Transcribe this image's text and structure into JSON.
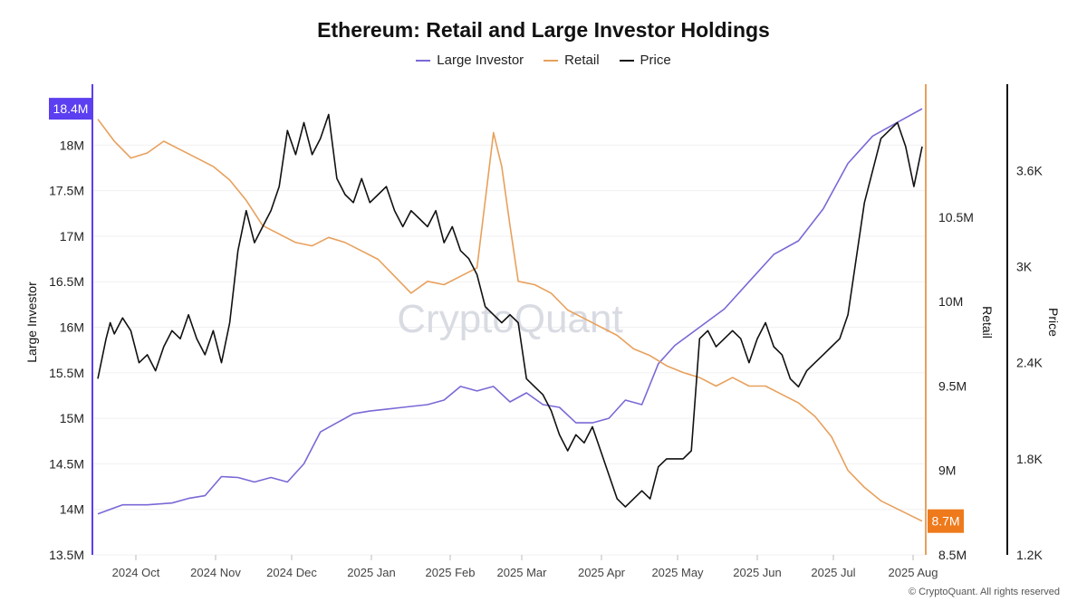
{
  "chart_data": {
    "type": "line",
    "title": "Ethereum: Retail and Large Investor Holdings",
    "legend": [
      {
        "name": "Large Investor",
        "color": "#7b68d6"
      },
      {
        "name": "Retail",
        "color": "#e8a05c"
      },
      {
        "name": "Price",
        "color": "#111111"
      }
    ],
    "x_ticks": [
      "2024 Oct",
      "2024 Nov",
      "2024 Dec",
      "2025 Jan",
      "2025 Feb",
      "2025 Mar",
      "2025 Apr",
      "2025 May",
      "2025 Jun",
      "2025 Jul",
      "2025 Aug"
    ],
    "axes": {
      "left": {
        "label": "Large Investor",
        "ticks": [
          "13.5M",
          "14M",
          "14.5M",
          "15M",
          "15.5M",
          "16M",
          "16.5M",
          "17M",
          "17.5M",
          "18M"
        ],
        "range": [
          13.5,
          18.6
        ],
        "unit": "M",
        "color": "#5b3ff0"
      },
      "right1": {
        "label": "Retail",
        "ticks": [
          "8.5M",
          "9M",
          "9.5M",
          "10M",
          "10.5M"
        ],
        "range": [
          8.5,
          11.25
        ],
        "unit": "M",
        "color": "#e8a05c"
      },
      "right2": {
        "label": "Price",
        "ticks": [
          "1.2K",
          "1.8K",
          "2.4K",
          "3K",
          "3.6K"
        ],
        "range": [
          1200,
          4100
        ],
        "unit": "USD"
      }
    },
    "badges": {
      "large_investor_last": "18.4M",
      "retail_last": "8.7M"
    },
    "watermark": "CryptoQuant",
    "footer": "© CryptoQuant. All rights reserved",
    "series": [
      {
        "name": "Large Investor",
        "axis": "left",
        "points": [
          [
            0.0,
            13.95
          ],
          [
            0.03,
            14.05
          ],
          [
            0.06,
            14.05
          ],
          [
            0.09,
            14.07
          ],
          [
            0.11,
            14.12
          ],
          [
            0.13,
            14.15
          ],
          [
            0.15,
            14.36
          ],
          [
            0.17,
            14.35
          ],
          [
            0.19,
            14.3
          ],
          [
            0.21,
            14.35
          ],
          [
            0.23,
            14.3
          ],
          [
            0.25,
            14.5
          ],
          [
            0.27,
            14.85
          ],
          [
            0.29,
            14.95
          ],
          [
            0.31,
            15.05
          ],
          [
            0.33,
            15.08
          ],
          [
            0.35,
            15.1
          ],
          [
            0.37,
            15.12
          ],
          [
            0.4,
            15.15
          ],
          [
            0.42,
            15.2
          ],
          [
            0.44,
            15.35
          ],
          [
            0.46,
            15.3
          ],
          [
            0.48,
            15.35
          ],
          [
            0.5,
            15.18
          ],
          [
            0.52,
            15.28
          ],
          [
            0.54,
            15.15
          ],
          [
            0.56,
            15.12
          ],
          [
            0.58,
            14.95
          ],
          [
            0.6,
            14.95
          ],
          [
            0.62,
            15.0
          ],
          [
            0.64,
            15.2
          ],
          [
            0.66,
            15.15
          ],
          [
            0.68,
            15.6
          ],
          [
            0.7,
            15.8
          ],
          [
            0.73,
            16.0
          ],
          [
            0.76,
            16.2
          ],
          [
            0.79,
            16.5
          ],
          [
            0.82,
            16.8
          ],
          [
            0.85,
            16.95
          ],
          [
            0.88,
            17.3
          ],
          [
            0.91,
            17.8
          ],
          [
            0.94,
            18.1
          ],
          [
            0.96,
            18.2
          ],
          [
            1.0,
            18.4
          ]
        ]
      },
      {
        "name": "Retail",
        "axis": "right1",
        "points": [
          [
            0.0,
            11.08
          ],
          [
            0.02,
            10.95
          ],
          [
            0.04,
            10.85
          ],
          [
            0.06,
            10.88
          ],
          [
            0.08,
            10.95
          ],
          [
            0.1,
            10.9
          ],
          [
            0.12,
            10.85
          ],
          [
            0.14,
            10.8
          ],
          [
            0.16,
            10.72
          ],
          [
            0.18,
            10.6
          ],
          [
            0.2,
            10.45
          ],
          [
            0.22,
            10.4
          ],
          [
            0.24,
            10.35
          ],
          [
            0.26,
            10.33
          ],
          [
            0.28,
            10.38
          ],
          [
            0.3,
            10.35
          ],
          [
            0.32,
            10.3
          ],
          [
            0.34,
            10.25
          ],
          [
            0.36,
            10.15
          ],
          [
            0.38,
            10.05
          ],
          [
            0.4,
            10.12
          ],
          [
            0.42,
            10.1
          ],
          [
            0.44,
            10.15
          ],
          [
            0.46,
            10.2
          ],
          [
            0.48,
            11.0
          ],
          [
            0.49,
            10.8
          ],
          [
            0.5,
            10.45
          ],
          [
            0.51,
            10.12
          ],
          [
            0.53,
            10.1
          ],
          [
            0.55,
            10.05
          ],
          [
            0.57,
            9.95
          ],
          [
            0.59,
            9.9
          ],
          [
            0.61,
            9.85
          ],
          [
            0.63,
            9.8
          ],
          [
            0.65,
            9.72
          ],
          [
            0.67,
            9.68
          ],
          [
            0.69,
            9.62
          ],
          [
            0.71,
            9.58
          ],
          [
            0.73,
            9.55
          ],
          [
            0.75,
            9.5
          ],
          [
            0.77,
            9.55
          ],
          [
            0.79,
            9.5
          ],
          [
            0.81,
            9.5
          ],
          [
            0.83,
            9.45
          ],
          [
            0.85,
            9.4
          ],
          [
            0.87,
            9.32
          ],
          [
            0.89,
            9.2
          ],
          [
            0.91,
            9.0
          ],
          [
            0.93,
            8.9
          ],
          [
            0.95,
            8.82
          ],
          [
            1.0,
            8.7
          ]
        ]
      },
      {
        "name": "Price",
        "axis": "right2",
        "points": [
          [
            0.0,
            2.3
          ],
          [
            0.01,
            2.55
          ],
          [
            0.015,
            2.65
          ],
          [
            0.02,
            2.58
          ],
          [
            0.03,
            2.68
          ],
          [
            0.04,
            2.6
          ],
          [
            0.05,
            2.4
          ],
          [
            0.06,
            2.45
          ],
          [
            0.07,
            2.35
          ],
          [
            0.08,
            2.5
          ],
          [
            0.09,
            2.6
          ],
          [
            0.1,
            2.55
          ],
          [
            0.11,
            2.7
          ],
          [
            0.12,
            2.55
          ],
          [
            0.13,
            2.45
          ],
          [
            0.14,
            2.6
          ],
          [
            0.15,
            2.4
          ],
          [
            0.16,
            2.65
          ],
          [
            0.17,
            3.1
          ],
          [
            0.18,
            3.35
          ],
          [
            0.19,
            3.15
          ],
          [
            0.2,
            3.25
          ],
          [
            0.21,
            3.35
          ],
          [
            0.22,
            3.5
          ],
          [
            0.23,
            3.85
          ],
          [
            0.24,
            3.7
          ],
          [
            0.25,
            3.9
          ],
          [
            0.26,
            3.7
          ],
          [
            0.27,
            3.8
          ],
          [
            0.28,
            3.95
          ],
          [
            0.29,
            3.55
          ],
          [
            0.3,
            3.45
          ],
          [
            0.31,
            3.4
          ],
          [
            0.32,
            3.55
          ],
          [
            0.33,
            3.4
          ],
          [
            0.34,
            3.45
          ],
          [
            0.35,
            3.5
          ],
          [
            0.36,
            3.35
          ],
          [
            0.37,
            3.25
          ],
          [
            0.38,
            3.35
          ],
          [
            0.39,
            3.3
          ],
          [
            0.4,
            3.25
          ],
          [
            0.41,
            3.35
          ],
          [
            0.42,
            3.15
          ],
          [
            0.43,
            3.25
          ],
          [
            0.44,
            3.1
          ],
          [
            0.45,
            3.05
          ],
          [
            0.46,
            2.95
          ],
          [
            0.47,
            2.75
          ],
          [
            0.48,
            2.7
          ],
          [
            0.49,
            2.65
          ],
          [
            0.5,
            2.7
          ],
          [
            0.51,
            2.65
          ],
          [
            0.52,
            2.3
          ],
          [
            0.53,
            2.25
          ],
          [
            0.54,
            2.2
          ],
          [
            0.55,
            2.1
          ],
          [
            0.56,
            1.95
          ],
          [
            0.57,
            1.85
          ],
          [
            0.58,
            1.95
          ],
          [
            0.59,
            1.9
          ],
          [
            0.6,
            2.0
          ],
          [
            0.61,
            1.85
          ],
          [
            0.62,
            1.7
          ],
          [
            0.63,
            1.55
          ],
          [
            0.64,
            1.5
          ],
          [
            0.65,
            1.55
          ],
          [
            0.66,
            1.6
          ],
          [
            0.67,
            1.55
          ],
          [
            0.68,
            1.75
          ],
          [
            0.69,
            1.8
          ],
          [
            0.7,
            1.8
          ],
          [
            0.71,
            1.8
          ],
          [
            0.72,
            1.85
          ],
          [
            0.73,
            2.55
          ],
          [
            0.74,
            2.6
          ],
          [
            0.75,
            2.5
          ],
          [
            0.76,
            2.55
          ],
          [
            0.77,
            2.6
          ],
          [
            0.78,
            2.55
          ],
          [
            0.79,
            2.4
          ],
          [
            0.8,
            2.55
          ],
          [
            0.81,
            2.65
          ],
          [
            0.82,
            2.5
          ],
          [
            0.83,
            2.45
          ],
          [
            0.84,
            2.3
          ],
          [
            0.85,
            2.25
          ],
          [
            0.86,
            2.35
          ],
          [
            0.87,
            2.4
          ],
          [
            0.88,
            2.45
          ],
          [
            0.89,
            2.5
          ],
          [
            0.9,
            2.55
          ],
          [
            0.91,
            2.7
          ],
          [
            0.92,
            3.05
          ],
          [
            0.93,
            3.4
          ],
          [
            0.94,
            3.6
          ],
          [
            0.95,
            3.8
          ],
          [
            0.96,
            3.85
          ],
          [
            0.97,
            3.9
          ],
          [
            0.98,
            3.75
          ],
          [
            0.99,
            3.5
          ],
          [
            1.0,
            3.75
          ]
        ]
      }
    ]
  }
}
